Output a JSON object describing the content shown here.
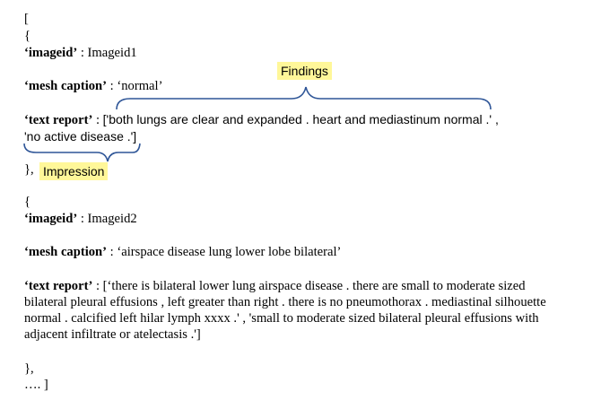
{
  "record1": {
    "open_bracket": "[",
    "open_brace": "{",
    "imageid_key": "‘imageid’",
    "imageid_sep": " : ",
    "imageid_value": "Imageid1",
    "mesh_key": "‘mesh caption’",
    "mesh_sep": " : ",
    "mesh_value": "‘normal’",
    "report_key": "‘text report’",
    "report_sep": " : ",
    "report_line1": "['both lungs are clear and expanded . heart and mediastinum normal .' ,",
    "report_line2": "'no active disease .']",
    "close_brace": "},"
  },
  "annotations": {
    "findings": "Findings",
    "impression": "Impression",
    "highlight_color": "#fff799",
    "brace_color": "#2e5597"
  },
  "record2": {
    "open_brace": "{",
    "imageid_key": "‘imageid’",
    "imageid_sep": " : ",
    "imageid_value": "Imageid2",
    "mesh_key": "‘mesh caption’",
    "mesh_sep": " : ",
    "mesh_value": "‘airspace disease lung lower lobe bilateral’",
    "report_key": "‘text report’",
    "report_sep": " : ",
    "report_line1": "[‘there is bilateral lower lung airspace disease . there are small to moderate sized",
    "report_line2": "bilateral pleural effusions , left greater than right . there is no pneumothorax . mediastinal silhouette",
    "report_line3": "normal . calcified left hilar lymph xxxx .' , 'small to moderate sized bilateral pleural effusions with",
    "report_line4": "adjacent infiltrate or atelectasis .']",
    "close_brace": "},"
  },
  "trailer": "…. ]"
}
